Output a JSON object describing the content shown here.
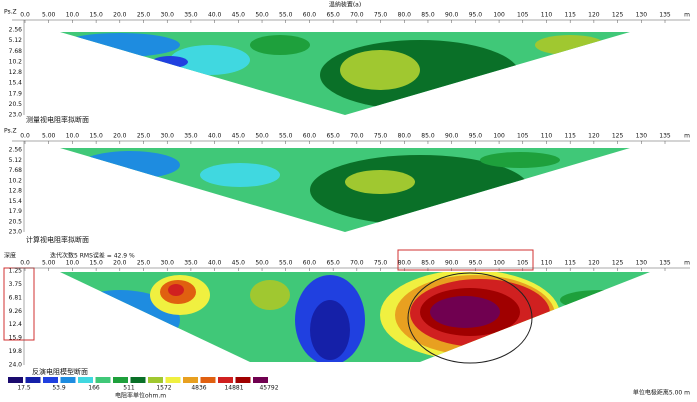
{
  "x_axis": {
    "ticks": [
      "0.0",
      "5.00",
      "10.0",
      "15.0",
      "20.0",
      "25.0",
      "30.0",
      "35.0",
      "40.0",
      "45.0",
      "50.0",
      "55.0",
      "60.0",
      "65.0",
      "70.0",
      "75.0",
      "80.0",
      "85.0",
      "90.0",
      "95.0",
      "100",
      "105",
      "110",
      "115",
      "120",
      "125",
      "130",
      "135"
    ],
    "unit": "m"
  },
  "panels": [
    {
      "title": "温纳装置(a)",
      "axis_label": "Ps.Z",
      "depths": [
        "2.56",
        "5.12",
        "7.68",
        "10.2",
        "12.8",
        "15.4",
        "17.9",
        "20.5",
        "23.0"
      ],
      "caption": "测量视电阻率拟断面"
    },
    {
      "axis_label": "Ps.Z",
      "depths": [
        "2.56",
        "5.12",
        "7.68",
        "10.2",
        "12.8",
        "15.4",
        "17.9",
        "20.5",
        "23.0"
      ],
      "caption": "计算视电阻率拟断面"
    },
    {
      "axis_label": "深度",
      "info": "迭代次数5 RMS误差 = 42.9 %",
      "depths": [
        "1.25",
        "3.75",
        "6.81",
        "9.26",
        "12.4",
        "15.9",
        "19.8",
        "24.0"
      ],
      "caption": "反演电阻模型断面"
    }
  ],
  "legend": {
    "values": [
      "17.5",
      "53.9",
      "166",
      "511",
      "1572",
      "4836",
      "14881",
      "45792"
    ],
    "unit": "电阻率单位ohm.m"
  },
  "footer": "单位电极距离5.00 m"
}
